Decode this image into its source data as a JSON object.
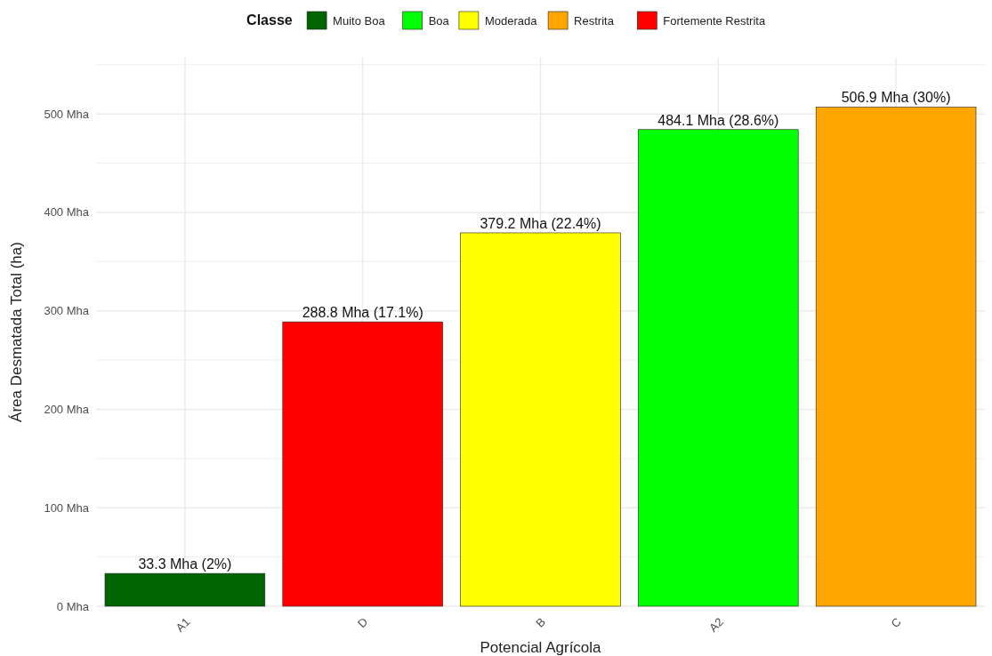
{
  "chart_data": {
    "type": "bar",
    "xlabel": "Potencial Agrícola",
    "ylabel": "Área Desmatada Total (ha)",
    "legend_title": "Classe",
    "legend": "top",
    "grid": true,
    "categories": [
      "A1",
      "D",
      "B",
      "A2",
      "C"
    ],
    "ylim": [
      0,
      557
    ],
    "yticks": [
      {
        "value": 0,
        "label": "0 Mha"
      },
      {
        "value": 50,
        "label": null
      },
      {
        "value": 100,
        "label": "100 Mha"
      },
      {
        "value": 150,
        "label": null
      },
      {
        "value": 200,
        "label": "200 Mha"
      },
      {
        "value": 250,
        "label": null
      },
      {
        "value": 300,
        "label": "300 Mha"
      },
      {
        "value": 350,
        "label": null
      },
      {
        "value": 400,
        "label": "400 Mha"
      },
      {
        "value": 450,
        "label": null
      },
      {
        "value": 500,
        "label": "500 Mha"
      },
      {
        "value": 550,
        "label": null
      }
    ],
    "series": [
      {
        "name": "Muito Boa",
        "color": "#006400",
        "values": [
          33.3,
          null,
          null,
          null,
          null
        ],
        "value_labels": [
          "33.3 Mha (2%)",
          null,
          null,
          null,
          null
        ]
      },
      {
        "name": "Boa",
        "color": "#00ff00",
        "values": [
          null,
          null,
          null,
          484.1,
          null
        ],
        "value_labels": [
          null,
          null,
          null,
          "484.1 Mha (28.6%)",
          null
        ]
      },
      {
        "name": "Moderada",
        "color": "#ffff00",
        "values": [
          null,
          null,
          379.2,
          null,
          null
        ],
        "value_labels": [
          null,
          null,
          "379.2 Mha (22.4%)",
          null,
          null
        ]
      },
      {
        "name": "Restrita",
        "color": "#ffa500",
        "values": [
          null,
          null,
          null,
          null,
          506.9
        ],
        "value_labels": [
          null,
          null,
          null,
          null,
          "506.9 Mha (30%)"
        ]
      },
      {
        "name": "Fortemente Restrita",
        "color": "#ff0000",
        "values": [
          null,
          288.8,
          null,
          null,
          null
        ],
        "value_labels": [
          null,
          "288.8 Mha (17.1%)",
          null,
          null,
          null
        ]
      }
    ]
  }
}
